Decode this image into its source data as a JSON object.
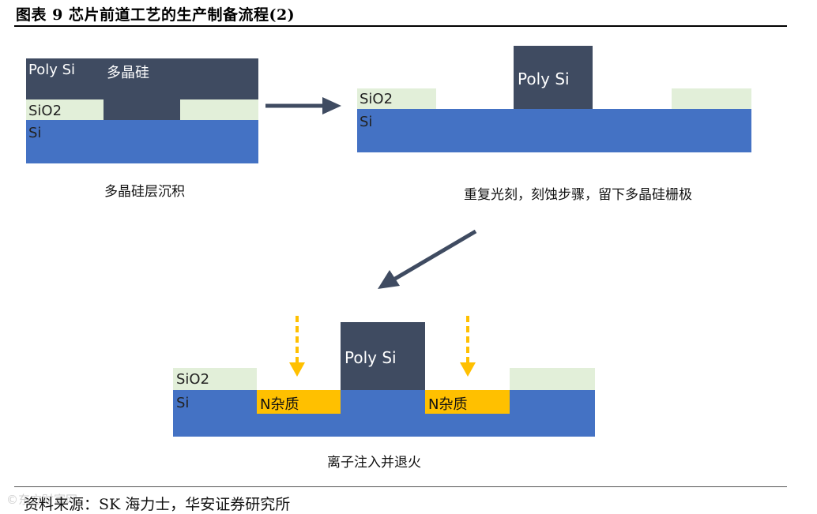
{
  "title": "图表 9 芯片前道工艺的生产制备流程(2)",
  "colors": {
    "poly": "#3f4b61",
    "sio2": "#e2efd9",
    "si": "#4472c4",
    "n_impurity": "#ffc000",
    "arrow": "#3f4b61",
    "implant_arrow": "#ffc000"
  },
  "steps": [
    {
      "labels": {
        "poly_si": "Poly Si",
        "poly_si_cn": "多晶硅",
        "sio2": "SiO2",
        "si": "Si"
      },
      "caption": "多晶硅层沉积"
    },
    {
      "labels": {
        "poly_si": "Poly Si",
        "sio2": "SiO2",
        "si": "Si"
      },
      "caption": "重复光刻，刻蚀步骤，留下多晶硅栅极"
    },
    {
      "labels": {
        "poly_si": "Poly Si",
        "sio2": "SiO2",
        "si": "Si",
        "n_impurity": "N杂质"
      },
      "caption": "离子注入并退火"
    }
  ],
  "source": "资料来源：SK 海力士，华安证券研究所",
  "watermark": "©东方财富网"
}
